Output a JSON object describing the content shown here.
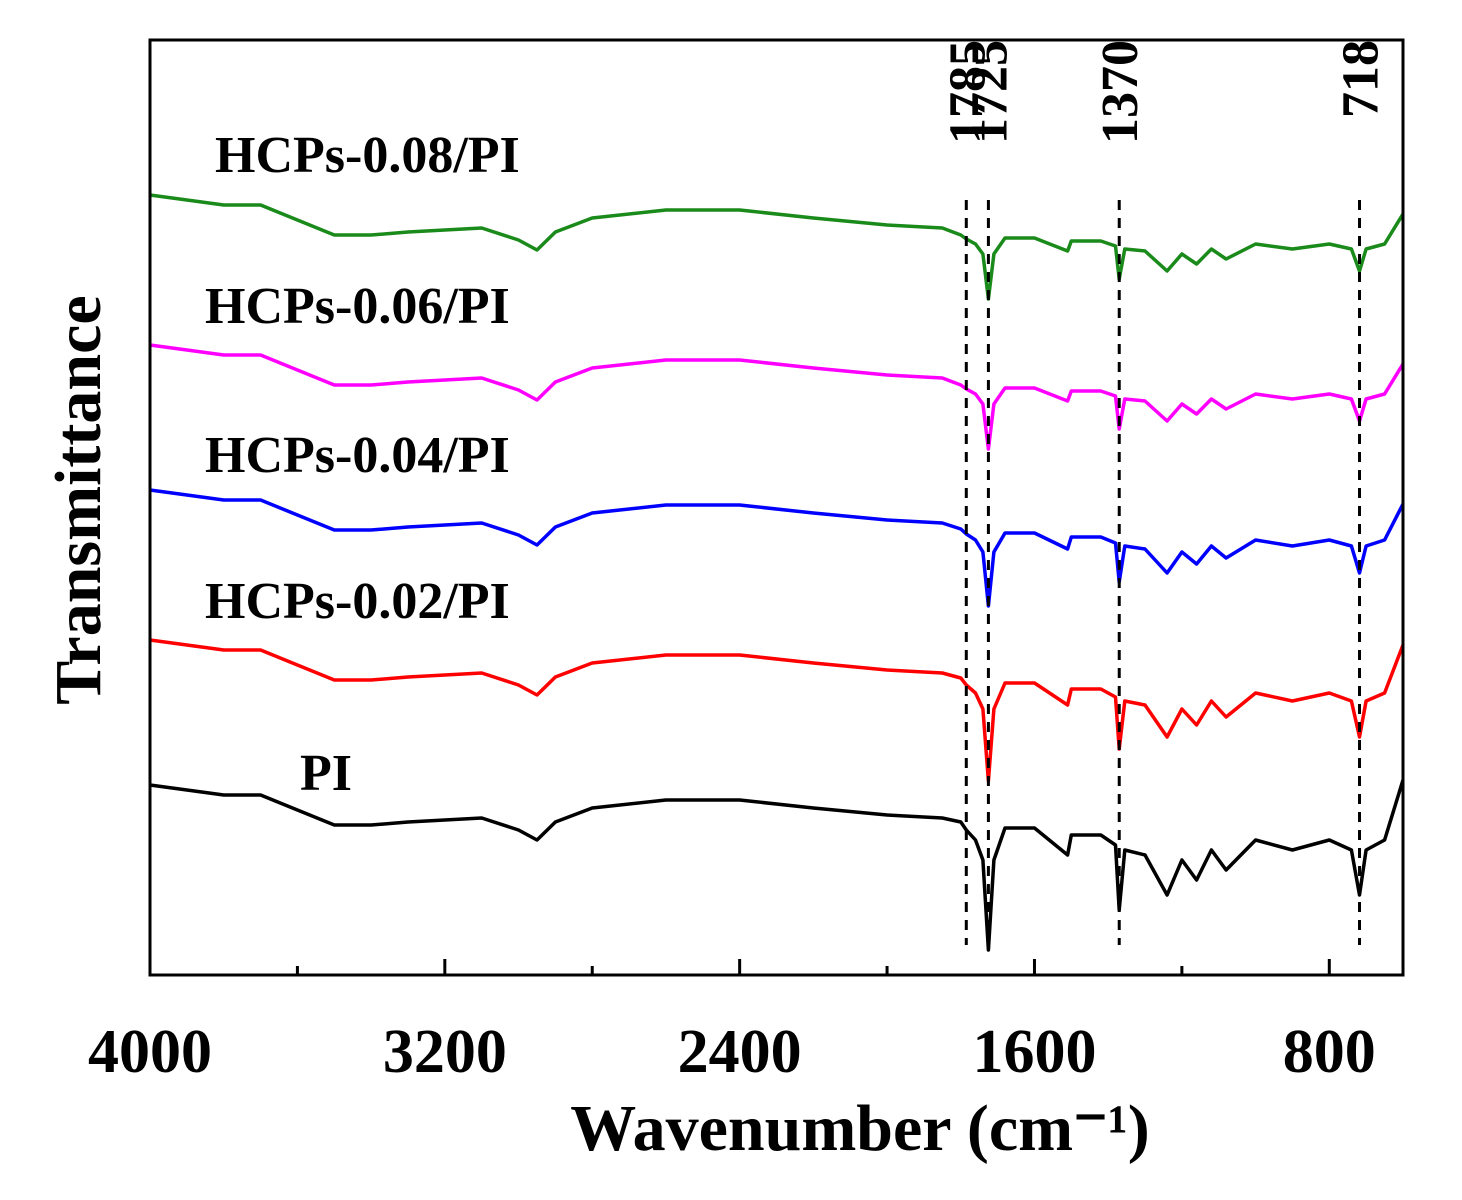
{
  "chart_data": {
    "type": "line",
    "x_label": "Wavenumber (cm⁻¹)",
    "y_label": "Transmittance",
    "xlim": [
      4000,
      600
    ],
    "xticks": [
      4000,
      3200,
      2400,
      1600,
      800
    ],
    "minor_xticks": [
      3600,
      2800,
      2000,
      1200
    ],
    "ylim": [
      0,
      935
    ],
    "annotations": [
      1785,
      1725,
      1370,
      718
    ],
    "x": [
      4000,
      3900,
      3800,
      3700,
      3600,
      3500,
      3400,
      3300,
      3200,
      3100,
      3000,
      2950,
      2900,
      2800,
      2600,
      2400,
      2200,
      2000,
      1850,
      1800,
      1785,
      1760,
      1740,
      1725,
      1710,
      1680,
      1600,
      1510,
      1500,
      1420,
      1380,
      1370,
      1355,
      1300,
      1240,
      1200,
      1160,
      1120,
      1080,
      1000,
      900,
      800,
      740,
      718,
      700,
      650,
      600
    ],
    "series": [
      {
        "name": "PI",
        "color": "#000000",
        "values": [
          190,
          185,
          180,
          180,
          165,
          150,
          150,
          153,
          155,
          157,
          145,
          135,
          153,
          167,
          175,
          175,
          167,
          160,
          157,
          153,
          145,
          135,
          115,
          25,
          115,
          147,
          147,
          120,
          140,
          140,
          130,
          65,
          125,
          120,
          80,
          115,
          95,
          125,
          105,
          135,
          125,
          135,
          125,
          80,
          125,
          135,
          195
        ]
      },
      {
        "name": "HCPs-0.02/PI",
        "color": "#ff0000",
        "values": [
          335,
          330,
          325,
          325,
          310,
          295,
          295,
          298,
          300,
          302,
          290,
          280,
          298,
          312,
          320,
          320,
          312,
          305,
          302,
          297,
          290,
          282,
          266,
          194,
          266,
          292,
          292,
          270,
          286,
          286,
          278,
          226,
          274,
          270,
          238,
          266,
          250,
          274,
          258,
          282,
          274,
          282,
          274,
          238,
          274,
          282,
          330
        ]
      },
      {
        "name": "HCPs-0.04/PI",
        "color": "#0000ff",
        "values": [
          485,
          480,
          475,
          475,
          460,
          445,
          445,
          448,
          450,
          452,
          440,
          430,
          448,
          462,
          470,
          470,
          462,
          455,
          452,
          446,
          441,
          435,
          423,
          369,
          423,
          442,
          442,
          426,
          438,
          438,
          432,
          393,
          429,
          426,
          402,
          423,
          411,
          429,
          417,
          435,
          429,
          435,
          429,
          402,
          429,
          435,
          471
        ]
      },
      {
        "name": "HCPs-0.06/PI",
        "color": "#ff00ff",
        "values": [
          630,
          625,
          620,
          620,
          605,
          590,
          590,
          593,
          595,
          597,
          585,
          575,
          593,
          607,
          615,
          615,
          607,
          600,
          597,
          590,
          586,
          581,
          571,
          526,
          571,
          587,
          587,
          574,
          584,
          584,
          579,
          546,
          576,
          574,
          554,
          571,
          561,
          576,
          566,
          581,
          576,
          581,
          576,
          554,
          576,
          581,
          611
        ]
      },
      {
        "name": "HCPs-0.08/PI",
        "color": "#1a8a1a",
        "values": [
          780,
          775,
          770,
          770,
          755,
          740,
          740,
          743,
          745,
          747,
          735,
          725,
          743,
          757,
          765,
          765,
          757,
          750,
          747,
          740,
          736,
          731,
          721,
          676,
          721,
          737,
          737,
          724,
          734,
          734,
          729,
          696,
          726,
          724,
          704,
          721,
          711,
          726,
          716,
          731,
          726,
          731,
          726,
          704,
          726,
          731,
          761
        ]
      }
    ]
  }
}
